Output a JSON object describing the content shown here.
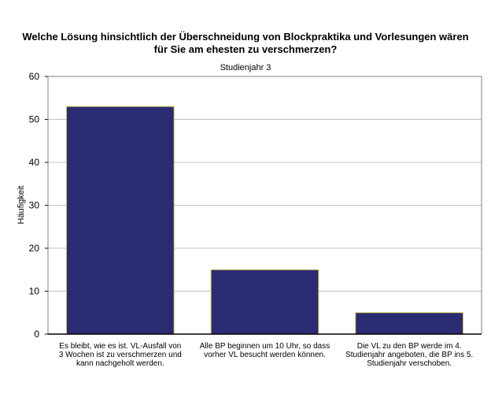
{
  "chart_data": {
    "type": "bar",
    "title_lines": [
      "Welche Lösung hinsichtlich der Überschneidung von Blockpraktika und Vorlesungen wären",
      "für Sie am ehesten zu verschmerzen?"
    ],
    "subtitle": "Studienjahr 3",
    "ylabel": "Häufigkeit",
    "xlabel": "",
    "ylim": [
      0,
      60
    ],
    "yticks": [
      0,
      10,
      20,
      30,
      40,
      50,
      60
    ],
    "grid": true,
    "categories": [
      [
        "Es bleibt, wie es ist. VL-Ausfall von",
        "3 Wochen ist zu verschmerzen und",
        "kann nachgeholt werden."
      ],
      [
        "Alle BP beginnen um 10 Uhr, so dass",
        "vorher VL besucht werden können."
      ],
      [
        "Die VL zu den BP werde im 4.",
        "Studienjahr angeboten, die BP ins 5.",
        "Studienjahr verschoben."
      ]
    ],
    "values": [
      53,
      15,
      5
    ],
    "bar_color": "#2b2b72",
    "bar_edge_color": "#d8d060",
    "grid_color": "#c0c0c0"
  }
}
